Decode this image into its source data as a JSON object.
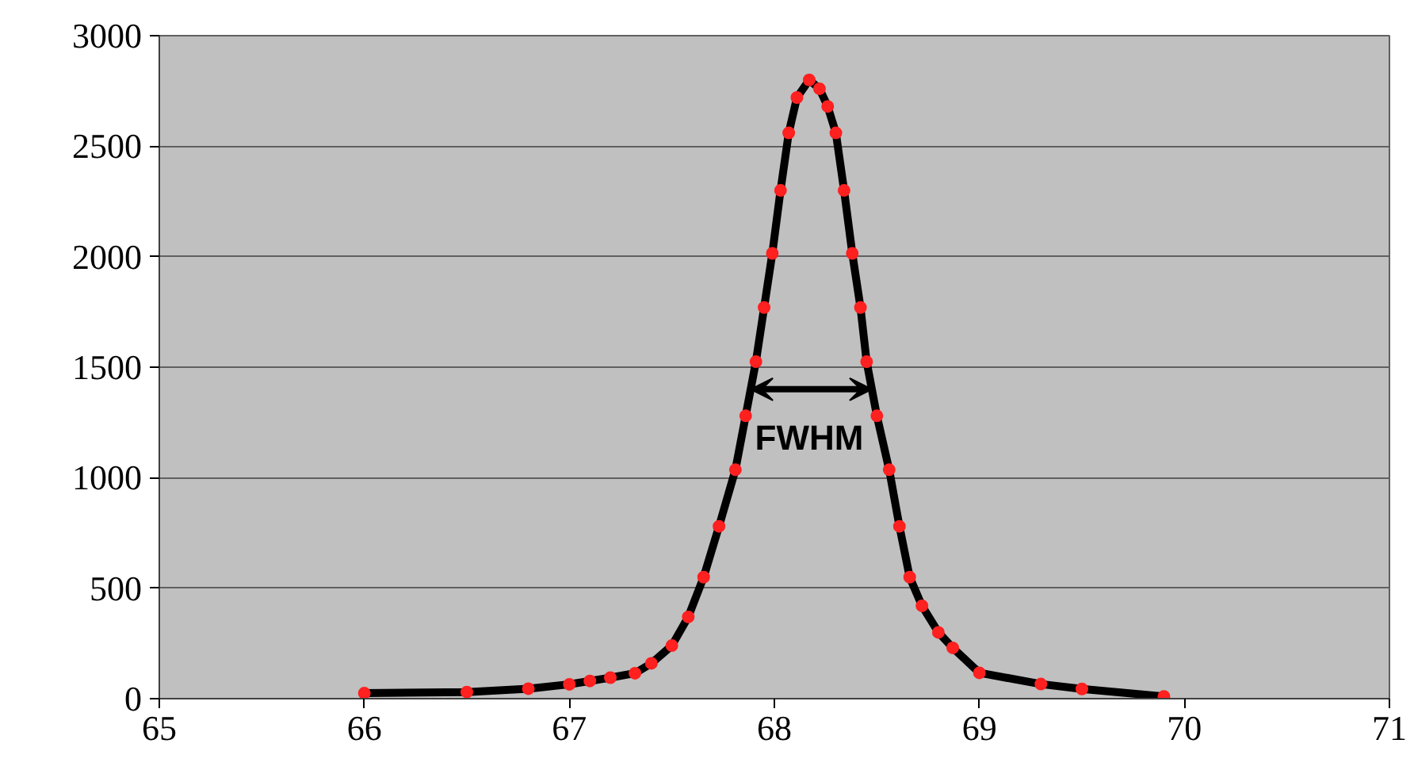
{
  "chart_data": {
    "type": "line",
    "xlim": [
      65,
      71
    ],
    "ylim": [
      0,
      3000
    ],
    "xticks": [
      65,
      66,
      67,
      68,
      69,
      70,
      71
    ],
    "yticks": [
      0,
      500,
      1000,
      1500,
      2000,
      2500,
      3000
    ],
    "grid": "y",
    "series": [
      {
        "color": "#000000",
        "x": [
          66.0,
          66.5,
          66.8,
          67.0,
          67.1,
          67.2,
          67.32,
          67.4,
          67.5,
          67.58,
          67.655,
          67.73,
          67.81,
          67.86,
          67.91,
          67.95,
          67.99,
          68.03,
          68.07,
          68.11,
          68.17,
          68.22,
          68.26,
          68.3,
          68.34,
          68.38,
          68.42,
          68.45,
          68.5,
          68.56,
          68.61,
          68.66,
          68.72,
          68.8,
          68.87,
          69.0,
          69.3,
          69.5,
          69.9
        ],
        "values": [
          25,
          30,
          45,
          65,
          80,
          95,
          115,
          160,
          240,
          370,
          550,
          780,
          1036,
          1280,
          1525,
          1770,
          2015,
          2300,
          2560,
          2720,
          2800,
          2760,
          2680,
          2560,
          2300,
          2015,
          1770,
          1525,
          1280,
          1036,
          780,
          550,
          420,
          300,
          230,
          117,
          66,
          44,
          10
        ]
      },
      {
        "type": "scatter",
        "color": "#ff2020",
        "marker": "circle",
        "x": [
          66.0,
          66.5,
          66.8,
          67.0,
          67.1,
          67.2,
          67.32,
          67.4,
          67.5,
          67.58,
          67.655,
          67.73,
          67.81,
          67.86,
          67.91,
          67.95,
          67.99,
          68.03,
          68.07,
          68.11,
          68.17,
          68.22,
          68.26,
          68.3,
          68.34,
          68.38,
          68.42,
          68.45,
          68.5,
          68.56,
          68.61,
          68.66,
          68.72,
          68.8,
          68.87,
          69.0,
          69.3,
          69.5,
          69.9
        ],
        "values": [
          25,
          30,
          45,
          65,
          80,
          95,
          115,
          160,
          240,
          370,
          550,
          780,
          1036,
          1280,
          1525,
          1770,
          2015,
          2300,
          2560,
          2720,
          2800,
          2760,
          2680,
          2560,
          2300,
          2015,
          1770,
          1525,
          1280,
          1036,
          780,
          550,
          420,
          300,
          230,
          117,
          66,
          44,
          10
        ]
      }
    ],
    "annotations": [
      "FWHM"
    ]
  }
}
